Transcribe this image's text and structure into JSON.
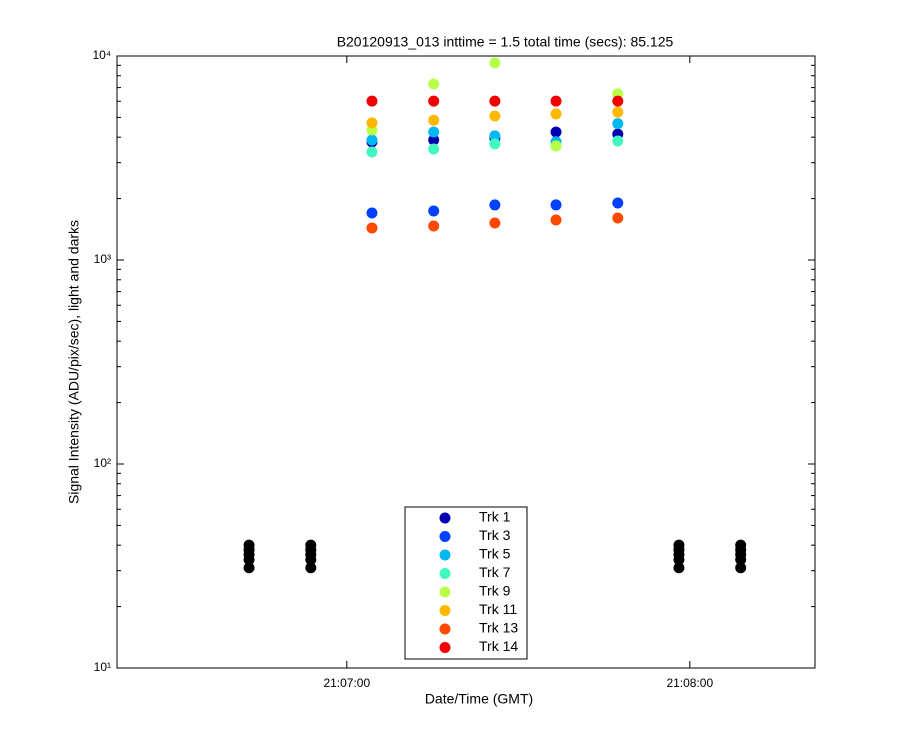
{
  "chart_data": {
    "type": "scatter",
    "title": "B20120913_013 inttime = 1.5 total time (secs): 85.125",
    "x_label": "Date/Time (GMT)",
    "y_label": "Signal Intensity (ADU/pix/sec), light and darks",
    "log_y": true,
    "xlim": [
      75379.8,
      75501.9
    ],
    "xticks": [
      {
        "value": 75420,
        "label": "21:07:00"
      },
      {
        "value": 75480,
        "label": "21:08:00"
      }
    ],
    "ylim": [
      10,
      10000
    ],
    "yticks": [
      {
        "value": 10,
        "label": "10¹"
      },
      {
        "value": 100,
        "label": "10²"
      },
      {
        "value": 1000,
        "label": "10³"
      },
      {
        "value": 10000,
        "label": "10⁴"
      }
    ],
    "legend": "bottom",
    "series": [
      {
        "name": "Trk 1",
        "color": "#0000b0",
        "x": [
          75424.4,
          75435.2,
          75445.9,
          75456.6,
          75467.4
        ],
        "values": [
          3787,
          3873,
          3960,
          4240,
          4140
        ]
      },
      {
        "name": "Trk 3",
        "color": "#0040ff",
        "x": [
          75424.4,
          75435.2,
          75445.9,
          75456.6,
          75467.4
        ],
        "values": [
          1700,
          1738,
          1862,
          1862,
          1903
        ]
      },
      {
        "name": "Trk 5",
        "color": "#00b8f0",
        "x": [
          75424.4,
          75435.2,
          75445.9,
          75456.6,
          75467.4
        ],
        "values": [
          3873,
          4240,
          4060,
          3800,
          4660
        ]
      },
      {
        "name": "Trk 7",
        "color": "#40f8c0",
        "x": [
          75424.4,
          75435.2,
          75445.9,
          75456.6,
          75467.4
        ],
        "values": [
          3383,
          3500,
          3710,
          3625,
          3830
        ]
      },
      {
        "name": "Trk 9",
        "color": "#b8ff48",
        "x": [
          75424.4,
          75435.2,
          75445.9,
          75456.6,
          75467.4
        ],
        "values": [
          4340,
          7290,
          9250,
          3625,
          6520
        ]
      },
      {
        "name": "Trk 11",
        "color": "#ffb800",
        "x": [
          75424.4,
          75435.2,
          75445.9,
          75456.6,
          75467.4
        ],
        "values": [
          4700,
          4840,
          5080,
          5200,
          5310
        ]
      },
      {
        "name": "Trk 13",
        "color": "#ff4800",
        "x": [
          75424.4,
          75435.2,
          75445.9,
          75456.6,
          75467.4
        ],
        "values": [
          1436,
          1468,
          1518,
          1570,
          1607
        ]
      },
      {
        "name": "Trk 14",
        "color": "#f00000",
        "x": [
          75424.4,
          75435.2,
          75445.9,
          75456.6,
          75467.4
        ],
        "values": [
          6010,
          6010,
          6010,
          6010,
          6010
        ]
      },
      {
        "color": "#000000",
        "x": [
          75402.9,
          75402.9,
          75402.9,
          75402.9,
          75402.9,
          75413.7,
          75413.7,
          75413.7,
          75413.7,
          75413.7,
          75478.1,
          75478.1,
          75478.1,
          75478.1,
          75478.1,
          75488.9,
          75488.9,
          75488.9,
          75488.9,
          75488.9
        ],
        "values": [
          40,
          38,
          36,
          34,
          31,
          40,
          38,
          36,
          34,
          31,
          40,
          38,
          36,
          34,
          31,
          40,
          38,
          36,
          34,
          31
        ]
      }
    ]
  }
}
